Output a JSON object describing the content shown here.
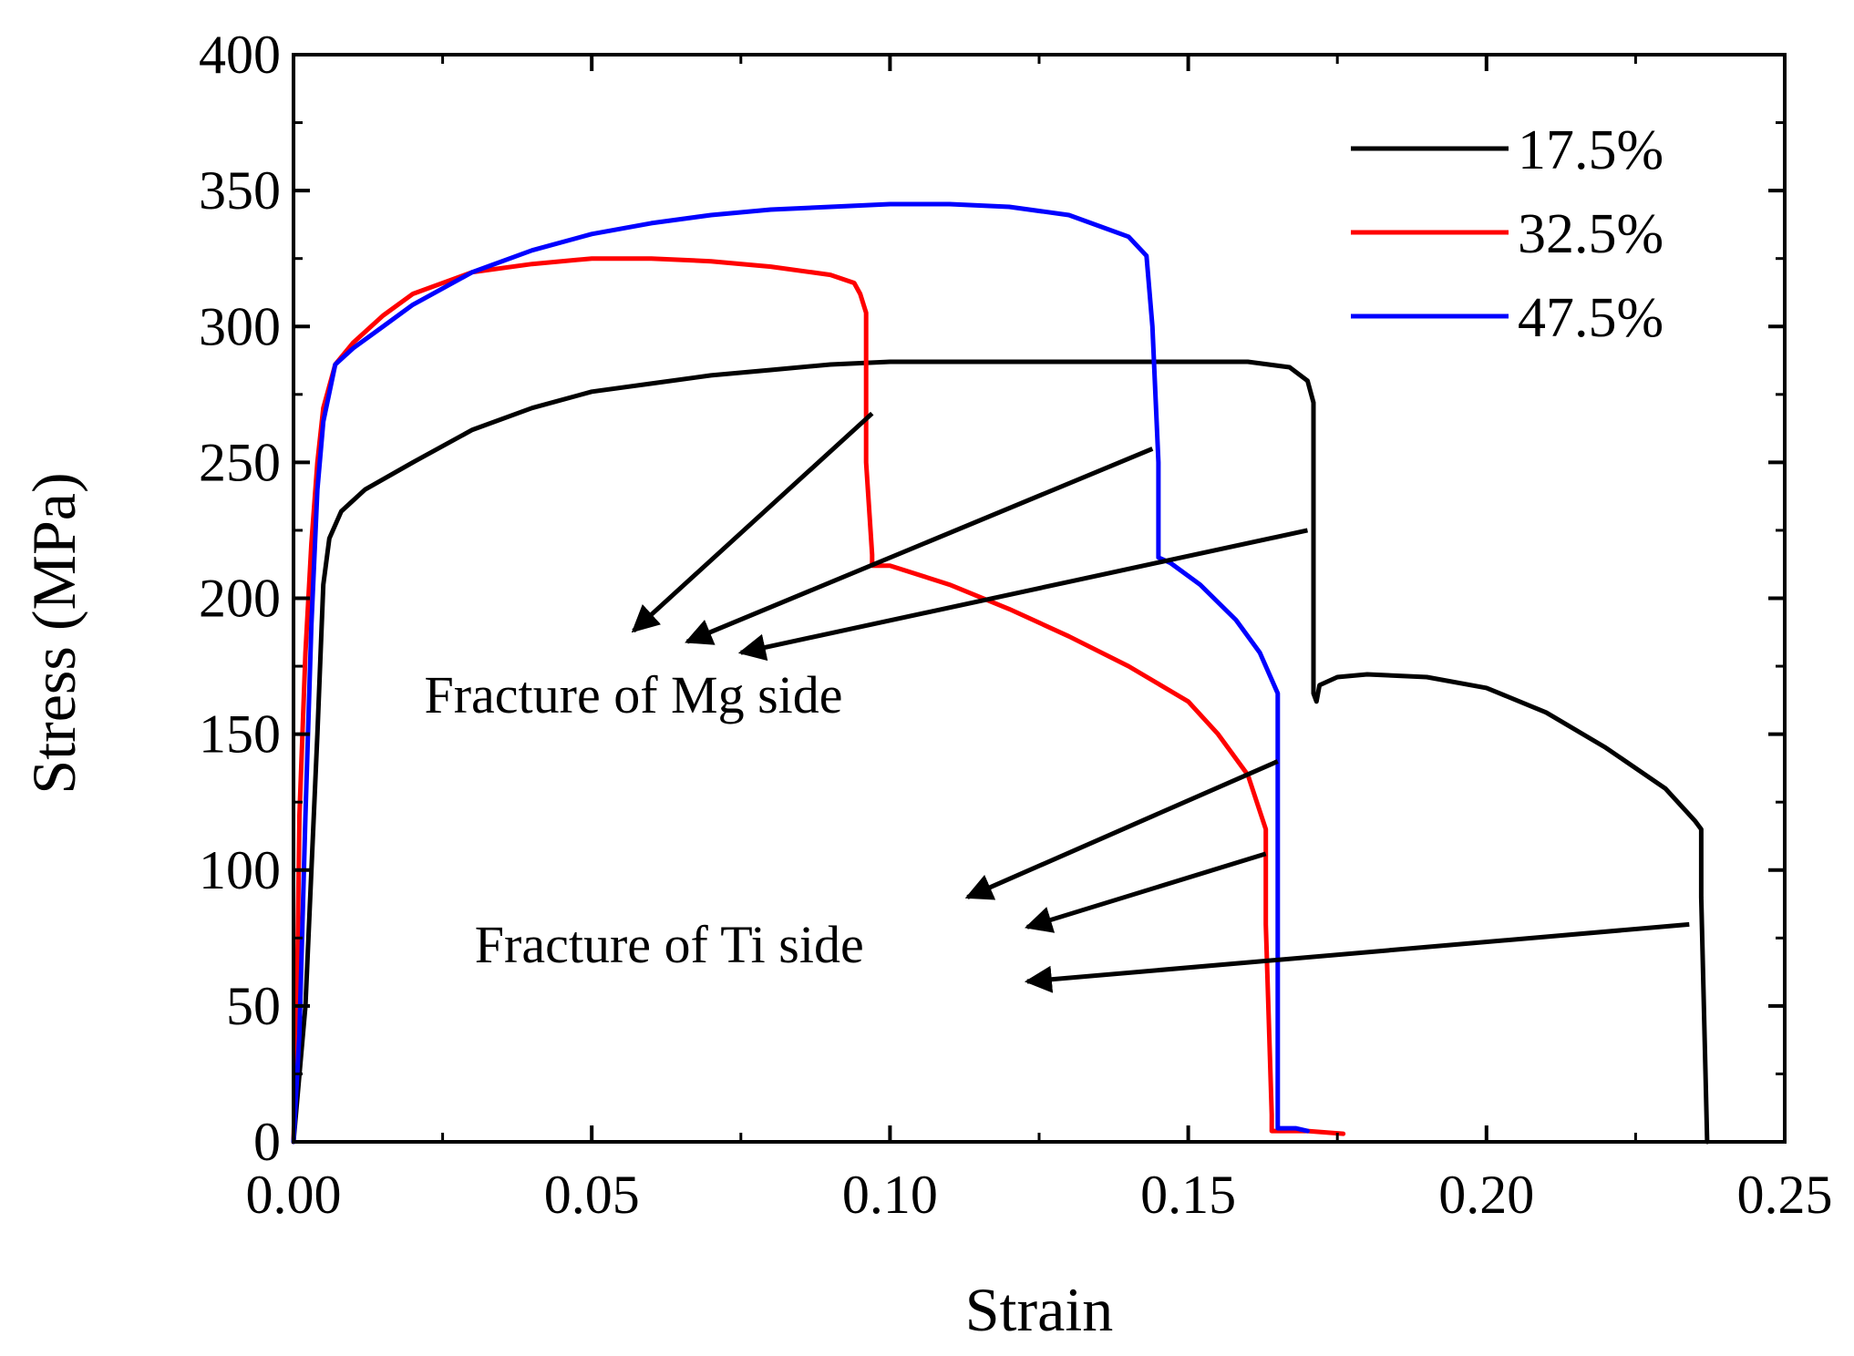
{
  "chart_data": {
    "type": "line",
    "title": "",
    "xlabel": "Strain",
    "ylabel": "Stress (MPa)",
    "xlim": [
      0,
      0.25
    ],
    "ylim": [
      0,
      400
    ],
    "x_ticks": [
      0,
      0.05,
      0.1,
      0.15,
      0.2,
      0.25
    ],
    "x_tick_labels": [
      "0.00",
      "0.05",
      "0.10",
      "0.15",
      "0.20",
      "0.25"
    ],
    "y_ticks": [
      0,
      50,
      100,
      150,
      200,
      250,
      300,
      350,
      400
    ],
    "y_tick_labels": [
      "0",
      "50",
      "100",
      "150",
      "200",
      "250",
      "300",
      "350",
      "400"
    ],
    "grid": false,
    "legend_position": "top-right",
    "series": [
      {
        "name": "17.5%",
        "color": "#000000",
        "points": [
          [
            0,
            0
          ],
          [
            0.002,
            50
          ],
          [
            0.004,
            150
          ],
          [
            0.005,
            205
          ],
          [
            0.006,
            222
          ],
          [
            0.008,
            232
          ],
          [
            0.012,
            240
          ],
          [
            0.02,
            250
          ],
          [
            0.03,
            262
          ],
          [
            0.04,
            270
          ],
          [
            0.05,
            276
          ],
          [
            0.06,
            279
          ],
          [
            0.07,
            282
          ],
          [
            0.08,
            284
          ],
          [
            0.09,
            286
          ],
          [
            0.1,
            287
          ],
          [
            0.12,
            287
          ],
          [
            0.14,
            287
          ],
          [
            0.16,
            287
          ],
          [
            0.167,
            285
          ],
          [
            0.17,
            280
          ],
          [
            0.171,
            272
          ],
          [
            0.171,
            230
          ],
          [
            0.171,
            165
          ],
          [
            0.1715,
            162
          ],
          [
            0.172,
            168
          ],
          [
            0.175,
            171
          ],
          [
            0.18,
            172
          ],
          [
            0.19,
            171
          ],
          [
            0.2,
            167
          ],
          [
            0.21,
            158
          ],
          [
            0.22,
            145
          ],
          [
            0.23,
            130
          ],
          [
            0.235,
            118
          ],
          [
            0.236,
            115
          ],
          [
            0.236,
            90
          ],
          [
            0.237,
            0
          ]
        ]
      },
      {
        "name": "32.5%",
        "color": "#ff0000",
        "points": [
          [
            0,
            0
          ],
          [
            0.0005,
            40
          ],
          [
            0.001,
            120
          ],
          [
            0.002,
            180
          ],
          [
            0.003,
            220
          ],
          [
            0.004,
            250
          ],
          [
            0.005,
            270
          ],
          [
            0.007,
            286
          ],
          [
            0.01,
            294
          ],
          [
            0.015,
            304
          ],
          [
            0.02,
            312
          ],
          [
            0.03,
            320
          ],
          [
            0.04,
            323
          ],
          [
            0.05,
            325
          ],
          [
            0.06,
            325
          ],
          [
            0.07,
            324
          ],
          [
            0.08,
            322
          ],
          [
            0.09,
            319
          ],
          [
            0.094,
            316
          ],
          [
            0.095,
            312
          ],
          [
            0.096,
            305
          ],
          [
            0.096,
            250
          ],
          [
            0.097,
            216
          ],
          [
            0.097,
            212
          ],
          [
            0.1,
            212
          ],
          [
            0.11,
            205
          ],
          [
            0.12,
            196
          ],
          [
            0.13,
            186
          ],
          [
            0.14,
            175
          ],
          [
            0.15,
            162
          ],
          [
            0.155,
            150
          ],
          [
            0.16,
            135
          ],
          [
            0.163,
            115
          ],
          [
            0.163,
            80
          ],
          [
            0.164,
            10
          ],
          [
            0.164,
            4
          ],
          [
            0.17,
            4
          ],
          [
            0.176,
            3
          ]
        ]
      },
      {
        "name": "47.5%",
        "color": "#0000ff",
        "points": [
          [
            0,
            0
          ],
          [
            0.001,
            40
          ],
          [
            0.002,
            120
          ],
          [
            0.003,
            190
          ],
          [
            0.004,
            240
          ],
          [
            0.005,
            265
          ],
          [
            0.007,
            286
          ],
          [
            0.01,
            292
          ],
          [
            0.015,
            300
          ],
          [
            0.02,
            308
          ],
          [
            0.03,
            320
          ],
          [
            0.04,
            328
          ],
          [
            0.05,
            334
          ],
          [
            0.06,
            338
          ],
          [
            0.07,
            341
          ],
          [
            0.08,
            343
          ],
          [
            0.09,
            344
          ],
          [
            0.1,
            345
          ],
          [
            0.11,
            345
          ],
          [
            0.12,
            344
          ],
          [
            0.13,
            341
          ],
          [
            0.14,
            333
          ],
          [
            0.143,
            326
          ],
          [
            0.144,
            300
          ],
          [
            0.145,
            250
          ],
          [
            0.145,
            215
          ],
          [
            0.147,
            213
          ],
          [
            0.152,
            205
          ],
          [
            0.158,
            192
          ],
          [
            0.162,
            180
          ],
          [
            0.165,
            165
          ],
          [
            0.165,
            5
          ],
          [
            0.168,
            5
          ],
          [
            0.17,
            4
          ]
        ]
      }
    ],
    "annotations": [
      {
        "text": "Fracture of Mg side",
        "label_at": [
          0.057,
          158
        ],
        "arrows": [
          {
            "from": [
              0.097,
              268
            ],
            "to": [
              0.057,
              188
            ]
          },
          {
            "from": [
              0.144,
              255
            ],
            "to": [
              0.066,
              184
            ]
          },
          {
            "from": [
              0.17,
              225
            ],
            "to": [
              0.075,
              180
            ]
          }
        ]
      },
      {
        "text": "Fracture of Ti side",
        "label_at": [
          0.063,
          66
        ],
        "arrows": [
          {
            "from": [
              0.165,
              140
            ],
            "to": [
              0.113,
              90
            ]
          },
          {
            "from": [
              0.163,
              106
            ],
            "to": [
              0.123,
              79
            ]
          },
          {
            "from": [
              0.234,
              80
            ],
            "to": [
              0.123,
              59
            ]
          }
        ]
      }
    ]
  }
}
